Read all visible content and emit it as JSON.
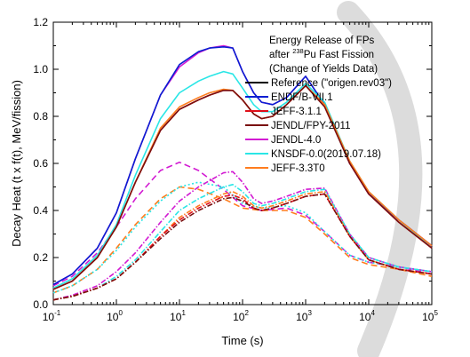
{
  "chart_data": {
    "type": "line",
    "xlabel": "Time (s)",
    "ylabel": "Decay Heat (t x f(t), MeV/fission)",
    "x_scale": "log",
    "xlim": [
      0.1,
      100000
    ],
    "ylim": [
      0.0,
      1.2
    ],
    "x_ticks": [
      {
        "value": 0.1,
        "base": "10",
        "exp": "-1"
      },
      {
        "value": 1,
        "base": "10",
        "exp": "0"
      },
      {
        "value": 10,
        "base": "10",
        "exp": "1"
      },
      {
        "value": 100,
        "base": "10",
        "exp": "2"
      },
      {
        "value": 1000,
        "base": "10",
        "exp": "3"
      },
      {
        "value": 10000,
        "base": "10",
        "exp": "4"
      },
      {
        "value": 100000,
        "base": "10",
        "exp": "5"
      }
    ],
    "y_ticks": [
      "0.0",
      "0.2",
      "0.4",
      "0.6",
      "0.8",
      "1.0",
      "1.2"
    ],
    "legend_title": {
      "line1": "Energy Release of FPs",
      "line2_prefix": "after ",
      "line2_sup": "238",
      "line2_suffix": "Pu Fast Fission",
      "line3": "(Change of Yields Data)"
    },
    "legend_position": "top-right",
    "series": [
      {
        "name": "Reference (\"origen.rev03\")",
        "color": "#000000"
      },
      {
        "name": "ENDF/B-VII.1",
        "color": "#0a1ed2"
      },
      {
        "name": "JEFF-3.1.1",
        "color": "#e0101a"
      },
      {
        "name": "JENDL/FPY-2011",
        "color": "#7a1010"
      },
      {
        "name": "JENDL-4.0",
        "color": "#d21ad2"
      },
      {
        "name": "KNSDF-0.0(2019.07.18)",
        "color": "#2ae6e6"
      },
      {
        "name": "JEFF-3.3T0",
        "color": "#ff7d1e"
      }
    ],
    "total_curves": [
      {
        "series": "JENDL-4.0",
        "style": "solid",
        "x": [
          0.1,
          0.2,
          0.5,
          1,
          2,
          5,
          10,
          20,
          30,
          50,
          70,
          100,
          150,
          200,
          300,
          500,
          1000,
          2000,
          5000,
          10000,
          30000,
          100000
        ],
        "y": [
          0.085,
          0.13,
          0.24,
          0.39,
          0.62,
          0.89,
          1.01,
          1.07,
          1.09,
          1.1,
          1.09,
          0.99,
          0.9,
          0.86,
          0.85,
          0.88,
          0.97,
          0.85,
          0.6,
          0.47,
          0.36,
          0.25
        ]
      },
      {
        "series": "ENDF/B-VII.1",
        "style": "solid",
        "x": [
          0.1,
          0.2,
          0.5,
          1,
          2,
          5,
          10,
          20,
          30,
          50,
          70,
          100,
          150,
          200,
          300,
          500,
          1000,
          2000,
          5000,
          10000,
          30000,
          100000
        ],
        "y": [
          0.085,
          0.13,
          0.24,
          0.39,
          0.62,
          0.89,
          1.02,
          1.075,
          1.09,
          1.095,
          1.09,
          0.99,
          0.9,
          0.86,
          0.85,
          0.88,
          0.97,
          0.85,
          0.6,
          0.47,
          0.36,
          0.25
        ]
      },
      {
        "series": "KNSDF-0.0(2019.07.18)",
        "style": "solid",
        "x": [
          0.1,
          0.2,
          0.5,
          1,
          2,
          5,
          10,
          20,
          30,
          50,
          70,
          100,
          150,
          200,
          300,
          500,
          1000,
          2000,
          5000,
          10000,
          30000,
          100000
        ],
        "y": [
          0.07,
          0.11,
          0.21,
          0.34,
          0.55,
          0.79,
          0.9,
          0.95,
          0.97,
          0.99,
          0.98,
          0.92,
          0.85,
          0.82,
          0.82,
          0.86,
          0.94,
          0.86,
          0.61,
          0.48,
          0.36,
          0.24
        ]
      },
      {
        "series": "JEFF-3.1.1",
        "style": "solid",
        "x": [
          0.1,
          0.2,
          0.5,
          1,
          2,
          5,
          10,
          20,
          30,
          50,
          70,
          100,
          150,
          200,
          300,
          500,
          1000,
          2000,
          5000,
          10000,
          30000,
          100000
        ],
        "y": [
          0.065,
          0.1,
          0.2,
          0.33,
          0.52,
          0.74,
          0.83,
          0.87,
          0.89,
          0.91,
          0.91,
          0.87,
          0.81,
          0.79,
          0.8,
          0.85,
          0.93,
          0.85,
          0.6,
          0.47,
          0.35,
          0.24
        ]
      },
      {
        "series": "JEFF-3.3T0",
        "style": "solid",
        "x": [
          0.1,
          0.2,
          0.5,
          1,
          2,
          5,
          10,
          20,
          30,
          50,
          70,
          100,
          150,
          200,
          300,
          500,
          1000,
          2000,
          5000,
          10000,
          30000,
          100000
        ],
        "y": [
          0.065,
          0.1,
          0.2,
          0.33,
          0.52,
          0.75,
          0.84,
          0.88,
          0.9,
          0.915,
          0.91,
          0.87,
          0.81,
          0.79,
          0.8,
          0.85,
          0.93,
          0.85,
          0.61,
          0.48,
          0.36,
          0.25
        ]
      },
      {
        "series": "JENDL/FPY-2011",
        "style": "solid",
        "x": [
          0.1,
          0.2,
          0.5,
          1,
          2,
          5,
          10,
          20,
          30,
          50,
          70,
          100,
          150,
          200,
          300,
          500,
          1000,
          2000,
          5000,
          10000,
          30000,
          100000
        ],
        "y": [
          0.065,
          0.1,
          0.2,
          0.33,
          0.52,
          0.74,
          0.83,
          0.87,
          0.89,
          0.91,
          0.91,
          0.87,
          0.81,
          0.79,
          0.8,
          0.85,
          0.93,
          0.84,
          0.6,
          0.47,
          0.35,
          0.24
        ]
      }
    ],
    "component_curves": [
      {
        "series": "JENDL-4.0",
        "style": "dashed",
        "x": [
          0.1,
          0.2,
          0.5,
          1,
          2,
          5,
          10,
          20,
          50,
          100,
          200,
          500,
          1000,
          2000,
          5000,
          10000,
          30000,
          100000
        ],
        "y": [
          0.08,
          0.12,
          0.22,
          0.33,
          0.45,
          0.57,
          0.605,
          0.57,
          0.49,
          0.42,
          0.4,
          0.41,
          0.38,
          0.31,
          0.21,
          0.18,
          0.16,
          0.13
        ]
      },
      {
        "series": "JEFF-3.3T0",
        "style": "dashed",
        "x": [
          0.1,
          0.2,
          0.5,
          1,
          2,
          5,
          10,
          20,
          50,
          100,
          200,
          500,
          1000,
          2000,
          5000,
          10000,
          30000,
          100000
        ],
        "y": [
          0.05,
          0.08,
          0.15,
          0.24,
          0.34,
          0.45,
          0.5,
          0.49,
          0.45,
          0.41,
          0.4,
          0.4,
          0.37,
          0.3,
          0.2,
          0.17,
          0.15,
          0.12
        ]
      },
      {
        "series": "KNSDF-0.0(2019.07.18)",
        "style": "dotted",
        "x": [
          0.1,
          0.2,
          0.5,
          1,
          2,
          5,
          10,
          20,
          50,
          100,
          200,
          500,
          1000,
          2000,
          5000,
          10000,
          30000,
          100000
        ],
        "y": [
          0.05,
          0.08,
          0.15,
          0.23,
          0.33,
          0.44,
          0.5,
          0.52,
          0.5,
          0.43,
          0.41,
          0.42,
          0.39,
          0.31,
          0.21,
          0.18,
          0.16,
          0.14
        ]
      },
      {
        "series": "JENDL-4.0",
        "style": "dashdot",
        "x": [
          0.1,
          0.2,
          0.5,
          1,
          2,
          5,
          10,
          20,
          50,
          70,
          100,
          150,
          200,
          300,
          500,
          1000,
          2000,
          5000,
          10000,
          30000,
          100000
        ],
        "y": [
          0.02,
          0.04,
          0.08,
          0.14,
          0.22,
          0.35,
          0.44,
          0.5,
          0.56,
          0.565,
          0.52,
          0.45,
          0.43,
          0.44,
          0.46,
          0.49,
          0.495,
          0.3,
          0.2,
          0.16,
          0.14
        ]
      },
      {
        "series": "KNSDF-0.0(2019.07.18)",
        "style": "dashdot",
        "x": [
          0.1,
          0.2,
          0.5,
          1,
          2,
          5,
          10,
          20,
          50,
          70,
          100,
          150,
          200,
          300,
          500,
          1000,
          2000,
          5000,
          10000,
          30000,
          100000
        ],
        "y": [
          0.02,
          0.035,
          0.07,
          0.12,
          0.19,
          0.31,
          0.4,
          0.45,
          0.5,
          0.51,
          0.48,
          0.43,
          0.42,
          0.43,
          0.45,
          0.48,
          0.49,
          0.3,
          0.2,
          0.16,
          0.14
        ]
      },
      {
        "series": "JEFF-3.3T0",
        "style": "dashdot",
        "x": [
          0.1,
          0.2,
          0.5,
          1,
          2,
          5,
          10,
          20,
          50,
          70,
          100,
          150,
          200,
          300,
          500,
          1000,
          2000,
          5000,
          10000,
          30000,
          100000
        ],
        "y": [
          0.02,
          0.035,
          0.07,
          0.11,
          0.18,
          0.29,
          0.37,
          0.42,
          0.47,
          0.48,
          0.46,
          0.42,
          0.41,
          0.42,
          0.44,
          0.47,
          0.48,
          0.29,
          0.19,
          0.15,
          0.13
        ]
      },
      {
        "series": "JEFF-3.1.1",
        "style": "dashdot",
        "x": [
          0.1,
          0.2,
          0.5,
          1,
          2,
          5,
          10,
          20,
          50,
          70,
          100,
          150,
          200,
          300,
          500,
          1000,
          2000,
          5000,
          10000,
          30000,
          100000
        ],
        "y": [
          0.02,
          0.035,
          0.07,
          0.11,
          0.18,
          0.29,
          0.36,
          0.41,
          0.46,
          0.465,
          0.45,
          0.41,
          0.4,
          0.41,
          0.43,
          0.46,
          0.47,
          0.29,
          0.19,
          0.15,
          0.13
        ]
      },
      {
        "series": "JENDL/FPY-2011",
        "style": "dashdot",
        "x": [
          0.1,
          0.2,
          0.5,
          1,
          2,
          5,
          10,
          20,
          50,
          70,
          100,
          150,
          200,
          300,
          500,
          1000,
          2000,
          5000,
          10000,
          30000,
          100000
        ],
        "y": [
          0.02,
          0.035,
          0.07,
          0.11,
          0.18,
          0.28,
          0.35,
          0.4,
          0.45,
          0.455,
          0.44,
          0.41,
          0.4,
          0.41,
          0.43,
          0.46,
          0.47,
          0.29,
          0.19,
          0.15,
          0.13
        ]
      }
    ]
  }
}
